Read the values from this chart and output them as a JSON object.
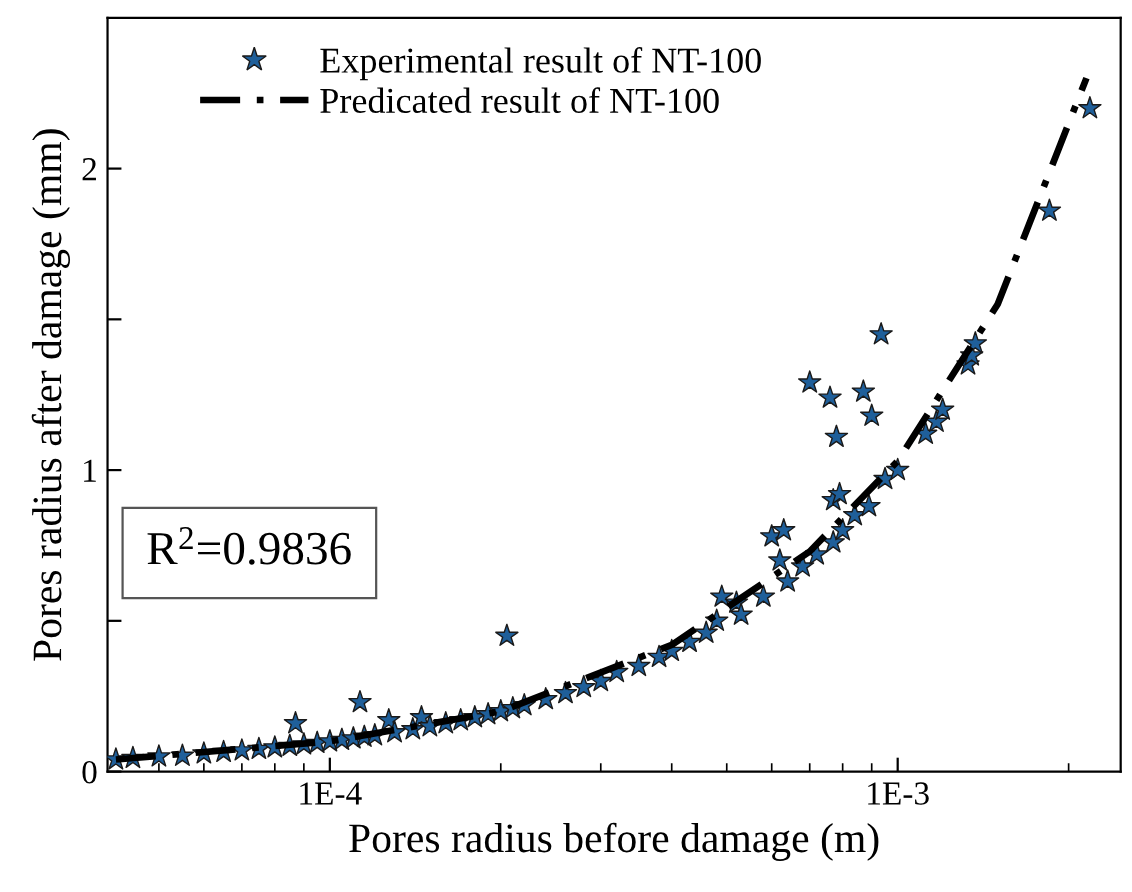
{
  "chart_data": {
    "type": "scatter",
    "xlabel": "Pores radius before damage (m)",
    "ylabel": "Pores radius after damage (mm)",
    "log": "x",
    "xlim": [
      4.06e-05,
      0.00247
    ],
    "xticks": [
      {
        "value": 0.0001,
        "label": "1E-4"
      },
      {
        "value": 0.001,
        "label": "1E-3"
      }
    ],
    "ylim": [
      0,
      2.5
    ],
    "yticks": [
      0,
      {
        "value": 0.5,
        "label": null
      },
      1,
      {
        "value": 1.5,
        "label": null
      },
      2
    ],
    "grid": false,
    "legend": "top left",
    "annotations": [
      "R$^{2}$=0.9836"
    ],
    "series": [
      {
        "name": "Experimental result of NT-100",
        "marker": "star",
        "color": "#1f5f9a",
        "x": [
          4.2e-05,
          4.5e-05,
          5e-05,
          5.5e-05,
          6e-05,
          6.5e-05,
          7e-05,
          7.5e-05,
          8e-05,
          8.5e-05,
          8.7e-05,
          9e-05,
          9.5e-05,
          0.0001,
          0.000105,
          0.00011,
          0.000113,
          0.000115,
          0.00012,
          0.000127,
          0.00013,
          0.00014,
          0.000145,
          0.00015,
          0.00016,
          0.00017,
          0.00018,
          0.00019,
          0.000205,
          0.0002,
          0.00021,
          0.00022,
          0.00024,
          0.00026,
          0.00028,
          0.0003,
          0.00032,
          0.00035,
          0.00038,
          0.0004,
          0.00043,
          0.00046,
          0.00048,
          0.00049,
          0.00052,
          0.00053,
          0.00058,
          0.0006,
          0.00062,
          0.00063,
          0.00064,
          0.00068,
          0.00072,
          0.0007,
          0.00076,
          0.00077,
          0.00077,
          0.00078,
          0.00079,
          0.0008,
          0.00084,
          0.00087,
          0.00089,
          0.0009,
          0.000935,
          0.00095,
          0.001,
          0.00112,
          0.00117,
          0.0012,
          0.00133,
          0.00135,
          0.00137,
          0.00185,
          0.00218
        ],
        "values": [
          0.04,
          0.045,
          0.05,
          0.052,
          0.06,
          0.065,
          0.07,
          0.075,
          0.08,
          0.085,
          0.16,
          0.09,
          0.095,
          0.1,
          0.105,
          0.11,
          0.23,
          0.115,
          0.12,
          0.17,
          0.13,
          0.14,
          0.18,
          0.15,
          0.16,
          0.17,
          0.18,
          0.19,
          0.45,
          0.2,
          0.21,
          0.22,
          0.24,
          0.26,
          0.28,
          0.3,
          0.33,
          0.35,
          0.38,
          0.4,
          0.43,
          0.46,
          0.5,
          0.58,
          0.56,
          0.52,
          0.58,
          0.78,
          0.7,
          0.8,
          0.63,
          0.68,
          0.72,
          1.29,
          1.24,
          0.9,
          0.76,
          1.11,
          0.92,
          0.8,
          0.85,
          1.26,
          0.88,
          1.18,
          1.45,
          0.97,
          1.0,
          1.12,
          1.16,
          1.2,
          1.35,
          1.38,
          1.42,
          1.86,
          2.2
        ]
      },
      {
        "name": "Predicated result of NT-100",
        "type": "line",
        "line_style": "dashdot",
        "marker": "none",
        "color": "#000000",
        "x": [
          4.2e-05,
          0.0001,
          0.0002,
          0.0004,
          0.0007,
          0.001,
          0.0015,
          0.00215
        ],
        "values": [
          0.04,
          0.1,
          0.2,
          0.42,
          0.73,
          1.03,
          1.55,
          2.3
        ]
      }
    ]
  }
}
